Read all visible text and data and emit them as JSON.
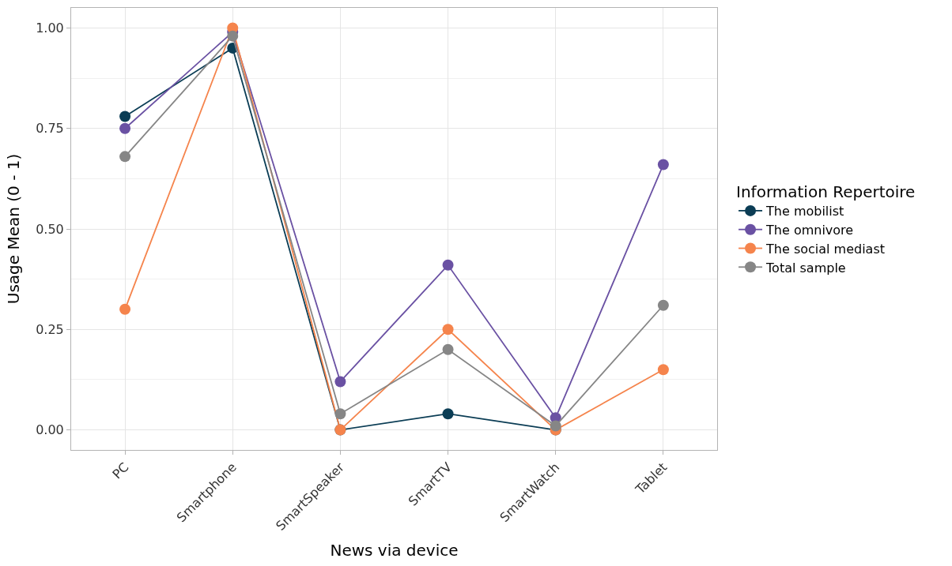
{
  "chart_data": {
    "type": "line",
    "xlabel": "News via device",
    "ylabel": "Usage Mean (0 - 1)",
    "legend_title": "Information Repertoire",
    "categories": [
      "PC",
      "Smartphone",
      "SmartSpeaker",
      "SmartTV",
      "SmartWatch",
      "Tablet"
    ],
    "series": [
      {
        "name": "The mobilist",
        "color": "#0b3d55",
        "values": [
          0.78,
          0.95,
          0.0,
          0.04,
          0.0,
          null
        ]
      },
      {
        "name": "The omnivore",
        "color": "#6a51a3",
        "values": [
          0.75,
          0.99,
          0.12,
          0.41,
          0.03,
          0.66
        ]
      },
      {
        "name": "The social mediast",
        "color": "#f5844c",
        "values": [
          0.3,
          1.0,
          0.0,
          0.25,
          0.0,
          0.15
        ]
      },
      {
        "name": "Total sample",
        "color": "#868686",
        "values": [
          0.68,
          0.98,
          0.04,
          0.2,
          0.01,
          0.31
        ]
      }
    ],
    "ylim": [
      -0.05,
      1.05
    ],
    "yticks": [
      {
        "value": 0,
        "label": "0.00"
      },
      {
        "value": 0.25,
        "label": "0.25"
      },
      {
        "value": 0.5,
        "label": "0.50"
      },
      {
        "value": 0.75,
        "label": "0.75"
      },
      {
        "value": 1,
        "label": "1.00"
      }
    ],
    "grid": true,
    "legend": "right",
    "marker": "circle",
    "line_style": "solid"
  }
}
